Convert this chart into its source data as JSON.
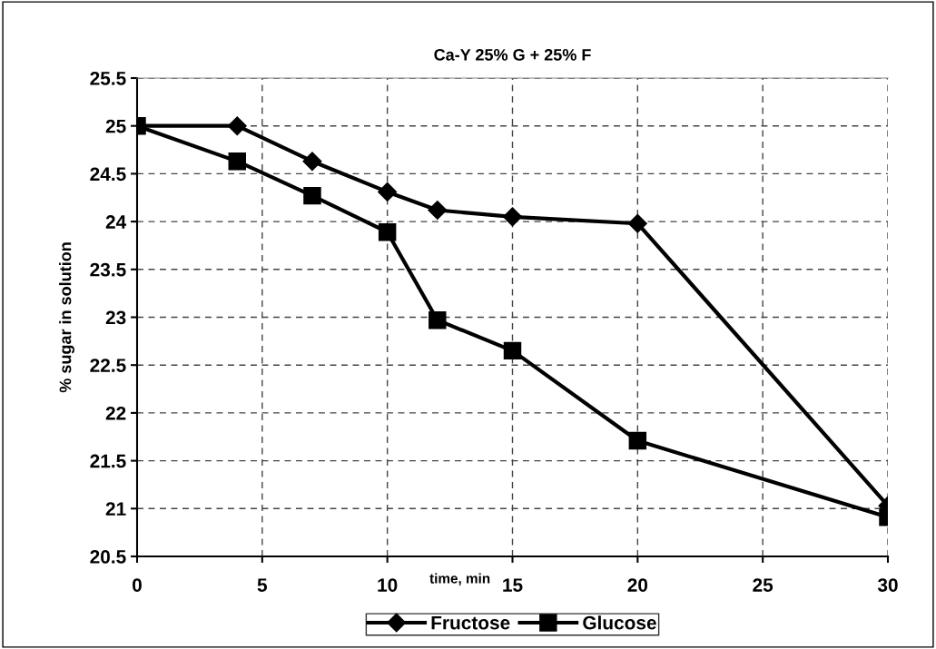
{
  "chart_data": {
    "type": "line",
    "title": "Ca-Y 25% G + 25% F",
    "xlabel": "time, min",
    "ylabel": "% sugar in solution",
    "x": [
      0,
      4,
      7,
      10,
      12,
      15,
      20,
      30
    ],
    "series": [
      {
        "name": "Fructose",
        "color": "#000000",
        "marker": "diamond",
        "values": [
          25.0,
          25.0,
          24.63,
          24.31,
          24.12,
          24.05,
          23.98,
          21.03
        ]
      },
      {
        "name": "Glucose",
        "color": "#000000",
        "marker": "square",
        "values": [
          25.0,
          24.63,
          24.27,
          23.89,
          22.97,
          22.65,
          21.71,
          20.91
        ]
      }
    ],
    "xlim": [
      0,
      30
    ],
    "xticks": [
      0,
      5,
      10,
      15,
      20,
      25,
      30
    ],
    "ylim": [
      20.5,
      25.5
    ],
    "yticks": [
      20.5,
      21,
      21.5,
      22,
      22.5,
      23,
      23.5,
      24,
      24.5,
      25,
      25.5
    ],
    "grid": true,
    "legend": "bottom",
    "line_style": "solid"
  }
}
